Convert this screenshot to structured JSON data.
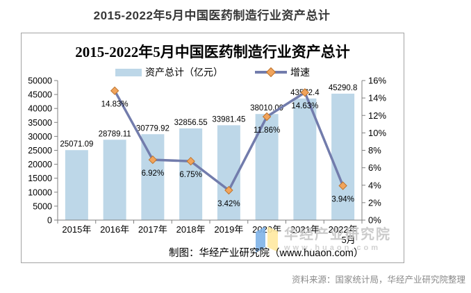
{
  "page": {
    "title": "2015-2022年5月中国医药制造行业资产总计",
    "background": "#ffffff"
  },
  "source_note": "资料来源：国家统计局，华经产业研究院整理",
  "credit": "制图：华经产业研究院（www.huaon.com）",
  "watermark": {
    "name": "华经产业研究院",
    "url": "www.huaon.com",
    "logo_blue": "#7FB3E8",
    "logo_yellow": "#FFE9A0"
  },
  "colors": {
    "bar_fill": "#BDD7E8",
    "line": "#727CAC",
    "marker_fill": "#F1A45C",
    "marker_border": "#BE752F",
    "axis": "#7F7F7F",
    "panel_border": "#A3A3A3",
    "label_text": "#000000",
    "muted_text": "#8A8A8A",
    "watermark_text": "#C6C6C6"
  },
  "chart_data": {
    "type": "bar",
    "overlay": "line",
    "title": "2015-2022年5月中国医药制造行业资产总计",
    "grid": false,
    "legend_position": "top",
    "categories": [
      "2015年",
      "2016年",
      "2017年",
      "2018年",
      "2019年",
      "2020年",
      "2021年",
      "2022年\n5月"
    ],
    "series": [
      {
        "name": "资产总计（亿元）",
        "kind": "bar",
        "values": [
          25071.09,
          28789.11,
          30779.92,
          32856.55,
          33981.45,
          38010.09,
          43572.4,
          45290.8
        ],
        "labels": [
          "25071.09",
          "28789.11",
          "30779.92",
          "32856.55",
          "33981.45",
          "38010.09",
          "43572.4",
          "45290.8"
        ]
      },
      {
        "name": "增速",
        "kind": "line",
        "values": [
          null,
          14.83,
          6.92,
          6.75,
          3.42,
          11.86,
          14.63,
          3.94
        ],
        "labels": [
          null,
          "14.83%",
          "6.92%",
          "6.75%",
          "3.42%",
          "11.86%",
          "14.63%",
          "3.94%"
        ]
      }
    ],
    "y_left": {
      "min": 0,
      "max": 50000,
      "step": 5000,
      "ticks": [
        "0",
        "5000",
        "10000",
        "15000",
        "20000",
        "25000",
        "30000",
        "35000",
        "40000",
        "45000",
        "50000"
      ]
    },
    "y_right": {
      "min": 0,
      "max": 16,
      "step": 2,
      "ticks": [
        "0%",
        "2%",
        "4%",
        "6%",
        "8%",
        "10%",
        "12%",
        "14%",
        "16%"
      ]
    }
  }
}
